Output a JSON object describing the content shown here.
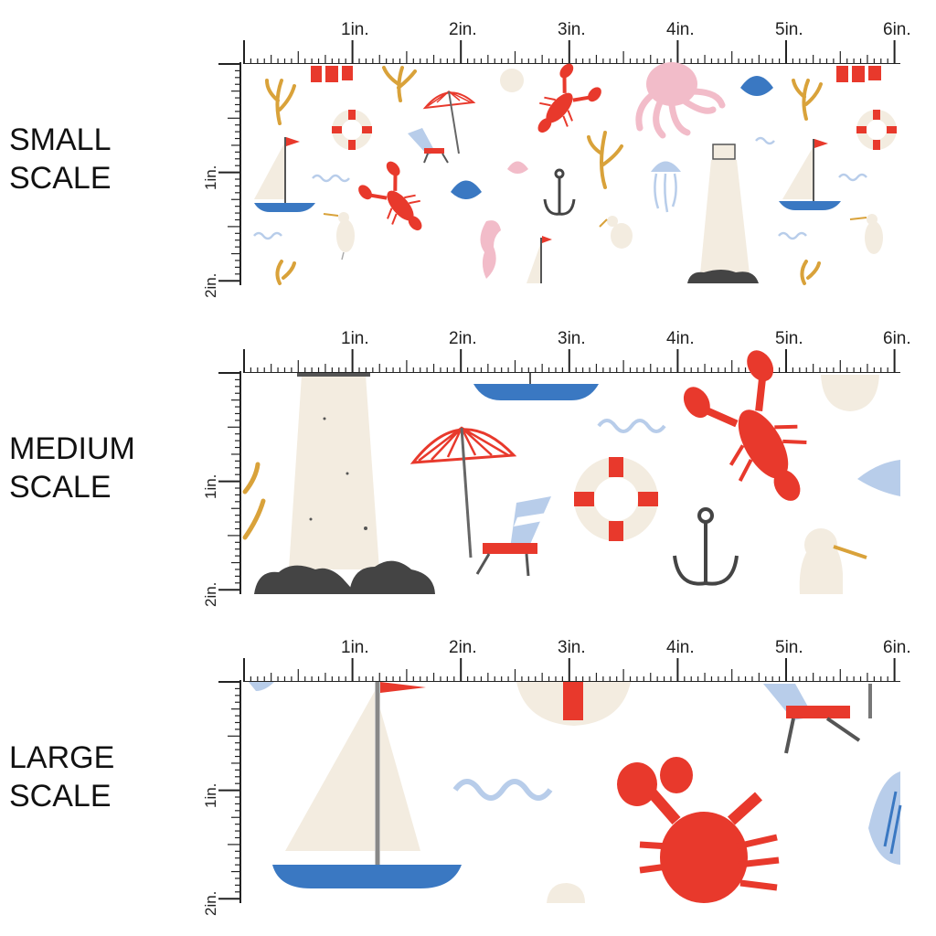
{
  "labels": {
    "small": [
      "SMALL",
      "SCALE"
    ],
    "medium": [
      "MEDIUM",
      "SCALE"
    ],
    "large": [
      "LARGE",
      "SCALE"
    ]
  },
  "ruler": {
    "horizontal": [
      "1in.",
      "2in.",
      "3in.",
      "4in.",
      "5in.",
      "6in."
    ],
    "vertical": [
      "1in.",
      "2in."
    ]
  },
  "colors": {
    "red": "#e8392c",
    "blue": "#3a78c2",
    "light_blue": "#b8cdea",
    "cream": "#f3ece0",
    "mustard": "#d9a23a",
    "pink": "#f2bcc9",
    "charcoal": "#444444"
  },
  "motifs": [
    "sailboat-icon",
    "lobster-icon",
    "life-ring-icon",
    "beach-umbrella-icon",
    "beach-chair-icon",
    "lighthouse-icon",
    "anchor-icon",
    "seagull-icon",
    "octopus-icon",
    "seashell-icon",
    "jellyfish-icon",
    "seahorse-icon",
    "seaweed-icon",
    "wave-icon"
  ]
}
